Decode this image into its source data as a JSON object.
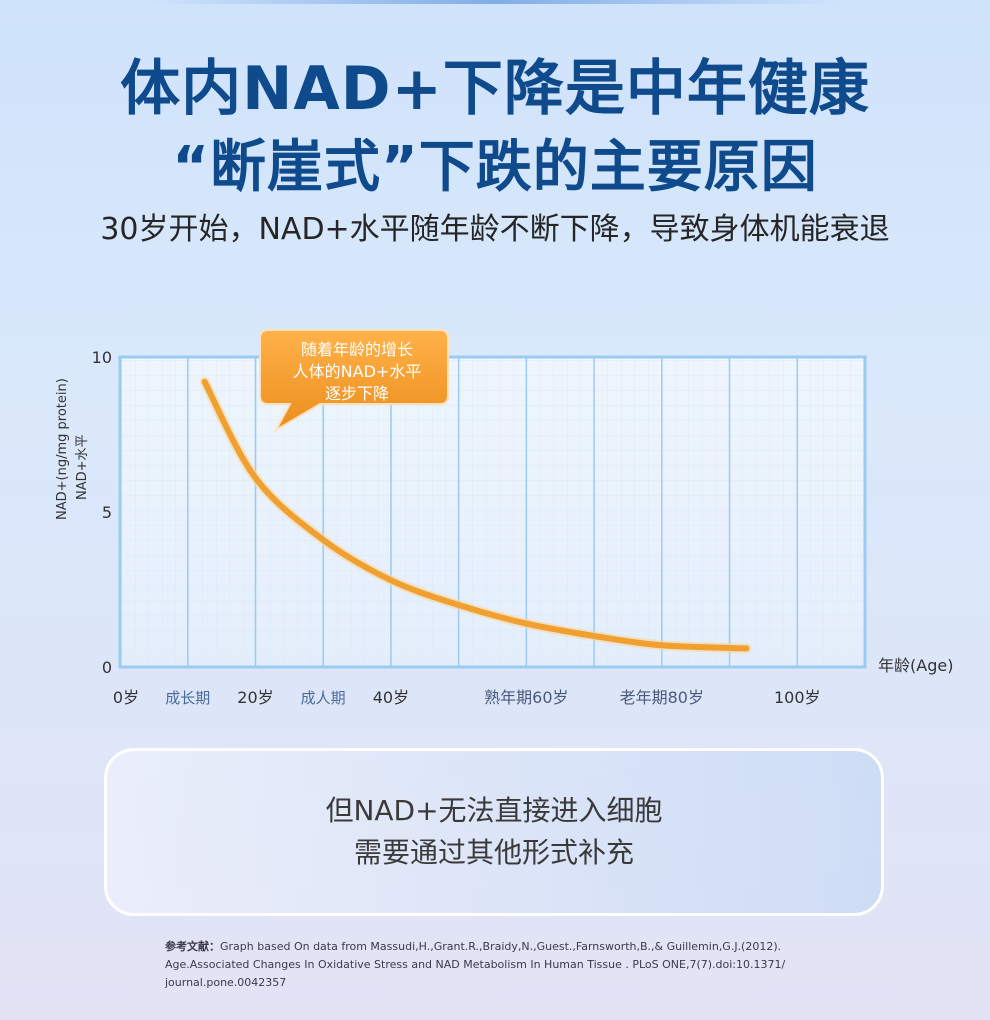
{
  "header": {
    "title_line1": "体内NAD+下降是中年健康",
    "title_line2": "“断崖式”下跌的主要原因",
    "subtitle": "30岁开始，NAD+水平随年龄不断下降，导致身体机能衰退"
  },
  "chart_data": {
    "type": "line",
    "ylabel_line1": "NAD+(ng/mg protein)",
    "ylabel_line2": "NAD+水平",
    "xlabel": "年龄(Age)",
    "xlim": [
      0,
      110
    ],
    "ylim": [
      0,
      10
    ],
    "y_ticks": [
      {
        "value": 0,
        "label": "0"
      },
      {
        "value": 5,
        "label": "5"
      },
      {
        "value": 10,
        "label": "10"
      }
    ],
    "x_ticks": [
      {
        "value": 0,
        "label": "0岁",
        "style": "age"
      },
      {
        "value": 10,
        "label": "成长期",
        "style": "stage"
      },
      {
        "value": 20,
        "label": "20岁",
        "style": "age"
      },
      {
        "value": 30,
        "label": "成人期",
        "style": "stage"
      },
      {
        "value": 40,
        "label": "40岁",
        "style": "age"
      },
      {
        "value": 60,
        "label": "熟年期60岁",
        "style": "mixed"
      },
      {
        "value": 80,
        "label": "老年期80岁",
        "style": "mixed"
      },
      {
        "value": 100,
        "label": "100岁",
        "style": "age"
      }
    ],
    "series": [
      {
        "x": [
          12.5,
          20,
          30,
          40,
          50,
          60,
          70,
          80,
          92.5
        ],
        "y": [
          9.2,
          6.1,
          4.1,
          2.8,
          2.0,
          1.4,
          1.0,
          0.7,
          0.6
        ]
      }
    ],
    "callout": [
      "随着年龄的增长",
      "人体的NAD+水平",
      "逐步下降"
    ],
    "colors": {
      "line": "#f0a030",
      "axis": "#9ccbf2",
      "grid": "#c2dcf5",
      "callout": "#f5a135",
      "tick_age": "#333333",
      "tick_stage": "#4a6a9a"
    }
  },
  "info_box": {
    "line1": "但NAD+无法直接进入细胞",
    "line2": "需要通过其他形式补充"
  },
  "references": {
    "label": "参考文献：",
    "text1": "Graph based On data from Massudi,H.,Grant.R.,Braidy,N.,Guest.,Farnsworth,B.,& Guillemin,G.J.(2012).",
    "text2": "Age.Associated Changes In Oxidative Stress and NAD Metabolism In Human Tissue . PLoS ONE,7(7).doi:10.1371/",
    "text3": "journal.pone.0042357"
  }
}
